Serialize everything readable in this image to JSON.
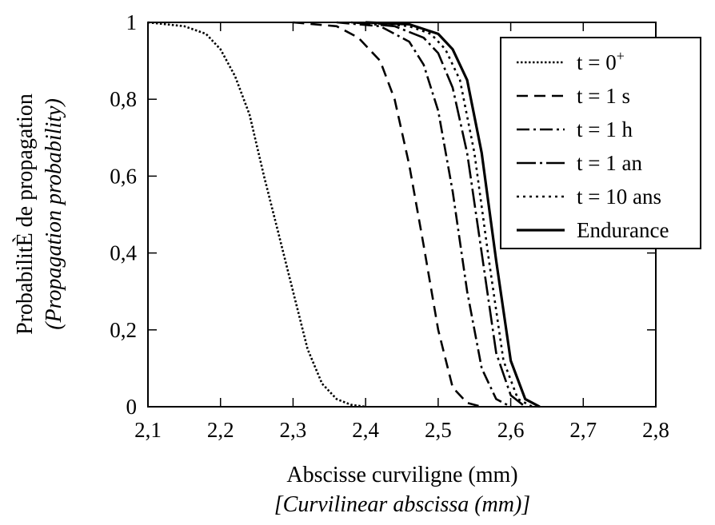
{
  "chart_data": {
    "type": "line",
    "xlabel": "Abscisse curviligne (mm)",
    "xlabel_translation": "[Curvilinear abscissa (mm)]",
    "ylabel": "ProbabilitÈ de propagation",
    "ylabel_translation": "(Propagation probability)",
    "xlim": [
      2.1,
      2.8
    ],
    "ylim": [
      0,
      1
    ],
    "x_ticks": [
      2.1,
      2.2,
      2.3,
      2.4,
      2.5,
      2.6,
      2.7,
      2.8
    ],
    "x_tick_labels": [
      "2,1",
      "2,2",
      "2,3",
      "2,4",
      "2,5",
      "2,6",
      "2,7",
      "2,8"
    ],
    "y_ticks": [
      0,
      0.2,
      0.4,
      0.6,
      0.8,
      1
    ],
    "y_tick_labels": [
      "0",
      "0,2",
      "0,4",
      "0,6",
      "0,8",
      "1"
    ],
    "grid": false,
    "legend_position": "top-right",
    "series": [
      {
        "name": "t = 0",
        "name_superscript": "+",
        "dash": "dotted",
        "x": [
          2.1,
          2.15,
          2.18,
          2.2,
          2.22,
          2.24,
          2.26,
          2.28,
          2.3,
          2.32,
          2.34,
          2.36,
          2.38,
          2.4
        ],
        "y": [
          1.0,
          0.99,
          0.97,
          0.93,
          0.86,
          0.76,
          0.6,
          0.45,
          0.3,
          0.15,
          0.06,
          0.02,
          0.005,
          0.0
        ]
      },
      {
        "name": "t = 1 s",
        "dash": "dashed",
        "x": [
          2.3,
          2.36,
          2.39,
          2.42,
          2.44,
          2.46,
          2.48,
          2.5,
          2.52,
          2.54,
          2.56
        ],
        "y": [
          1.0,
          0.99,
          0.96,
          0.9,
          0.8,
          0.63,
          0.42,
          0.2,
          0.05,
          0.01,
          0.0
        ]
      },
      {
        "name": "t = 1 h",
        "dash": "dash-dot",
        "x": [
          2.36,
          2.42,
          2.46,
          2.48,
          2.5,
          2.52,
          2.54,
          2.56,
          2.58,
          2.6
        ],
        "y": [
          1.0,
          0.99,
          0.95,
          0.89,
          0.77,
          0.56,
          0.3,
          0.1,
          0.02,
          0.0
        ]
      },
      {
        "name": "t = 1 an",
        "dash": "long-dash-dot",
        "x": [
          2.38,
          2.44,
          2.48,
          2.5,
          2.52,
          2.54,
          2.56,
          2.58,
          2.6,
          2.62
        ],
        "y": [
          1.0,
          0.99,
          0.96,
          0.92,
          0.83,
          0.66,
          0.4,
          0.14,
          0.03,
          0.0
        ]
      },
      {
        "name": "t = 10 ans",
        "dash": "fine-dotted",
        "x": [
          2.4,
          2.46,
          2.49,
          2.51,
          2.53,
          2.55,
          2.57,
          2.59,
          2.61,
          2.63
        ],
        "y": [
          1.0,
          0.99,
          0.97,
          0.93,
          0.85,
          0.66,
          0.38,
          0.12,
          0.02,
          0.0
        ]
      },
      {
        "name": "Endurance",
        "dash": "solid",
        "x": [
          2.4,
          2.46,
          2.5,
          2.52,
          2.54,
          2.56,
          2.58,
          2.6,
          2.62,
          2.64
        ],
        "y": [
          1.0,
          0.995,
          0.97,
          0.93,
          0.85,
          0.66,
          0.38,
          0.12,
          0.02,
          0.0
        ]
      }
    ]
  }
}
